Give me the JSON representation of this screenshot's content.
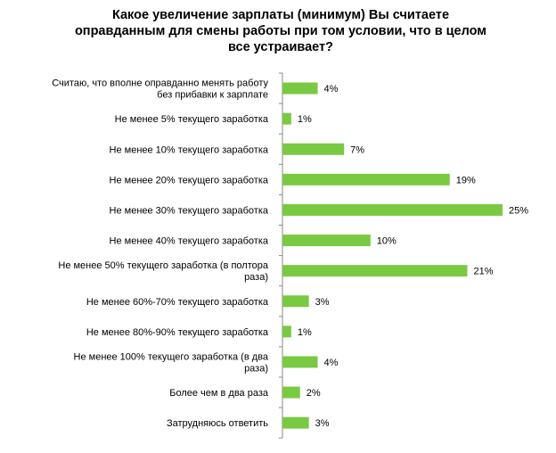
{
  "chart_data": {
    "type": "bar",
    "orientation": "horizontal",
    "title": "Какое увеличение зарплаты (минимум)  Вы считаете оправданным для смены работы при том условии, что в целом все устраивает?",
    "categories": [
      "Считаю, что вполне оправданно менять работу без прибавки к зарплате",
      "Не менее 5% текущего заработка",
      "Не менее 10% текущего заработка",
      "Не менее 20% текущего заработка",
      "Не менее 30% текущего заработка",
      "Не менее 40% текущего заработка",
      "Не менее 50% текущего заработка (в полтора раза)",
      "Не менее 60%-70% текущего заработка",
      "Не менее 80%-90% текущего заработка",
      "Не менее 100% текущего заработка (в два раза)",
      "Более чем в два раза",
      "Затрудняюсь ответить"
    ],
    "category_lines": [
      [
        "Считаю, что вполне оправданно менять работу",
        "без прибавки к зарплате"
      ],
      [
        "Не менее 5% текущего заработка"
      ],
      [
        "Не менее 10% текущего заработка"
      ],
      [
        "Не менее 20% текущего заработка"
      ],
      [
        "Не менее 30% текущего заработка"
      ],
      [
        "Не менее 40% текущего заработка"
      ],
      [
        "Не менее 50% текущего заработка (в полтора",
        "раза)"
      ],
      [
        "Не менее 60%-70% текущего заработка"
      ],
      [
        "Не менее 80%-90% текущего заработка"
      ],
      [
        "Не менее 100% текущего заработка (в два",
        "раза)"
      ],
      [
        "Более чем в два раза"
      ],
      [
        "Затрудняюсь ответить"
      ]
    ],
    "values": [
      4,
      1,
      7,
      19,
      25,
      10,
      21,
      3,
      1,
      4,
      2,
      3
    ],
    "value_labels": [
      "4%",
      "1%",
      "7%",
      "19%",
      "25%",
      "10%",
      "21%",
      "3%",
      "1%",
      "4%",
      "2%",
      "3%"
    ],
    "xlim": [
      0,
      25
    ],
    "grid": false,
    "legend": "none",
    "bar_color": "#7ac943",
    "axis_color": "#888888"
  }
}
